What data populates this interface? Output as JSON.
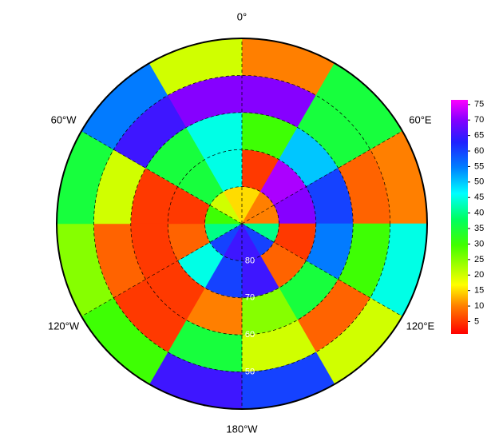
{
  "chart_data": {
    "type": "polar_heatmap",
    "lat_bins": [
      -90,
      -80,
      -70,
      -60,
      -50,
      -40
    ],
    "lon_bins": [
      0,
      30,
      60,
      90,
      120,
      150,
      180,
      210,
      240,
      270,
      300,
      330,
      360
    ],
    "values": [
      [
        15,
        10,
        10,
        40,
        60,
        65,
        65,
        60,
        40,
        30,
        20,
        15
      ],
      [
        5,
        72,
        70,
        5,
        8,
        65,
        60,
        45,
        8,
        5,
        35,
        45
      ],
      [
        30,
        50,
        60,
        55,
        35,
        25,
        10,
        5,
        5,
        5,
        35,
        45
      ],
      [
        70,
        35,
        8,
        30,
        8,
        20,
        35,
        5,
        8,
        20,
        65,
        70
      ],
      [
        10,
        35,
        10,
        45,
        20,
        60,
        65,
        30,
        25,
        35,
        55,
        20
      ]
    ],
    "rlim": [
      -90,
      -40
    ],
    "lat_ticks": [
      {
        "value": -80,
        "label": "80"
      },
      {
        "value": -70,
        "label": "70"
      },
      {
        "value": -60,
        "label": "60"
      },
      {
        "value": -50,
        "label": "50"
      }
    ],
    "lon_ticks": [
      {
        "value": 0,
        "label": "0°"
      },
      {
        "value": 60,
        "label": "60°E"
      },
      {
        "value": 120,
        "label": "120°E"
      },
      {
        "value": 180,
        "label": "180°W"
      },
      {
        "value": -120,
        "label": "120°W"
      },
      {
        "value": -60,
        "label": "60°W"
      }
    ],
    "clim": [
      1,
      76.5
    ],
    "cticks": [
      5,
      10,
      15,
      20,
      25,
      30,
      35,
      40,
      45,
      50,
      55,
      60,
      65,
      70,
      75
    ]
  }
}
